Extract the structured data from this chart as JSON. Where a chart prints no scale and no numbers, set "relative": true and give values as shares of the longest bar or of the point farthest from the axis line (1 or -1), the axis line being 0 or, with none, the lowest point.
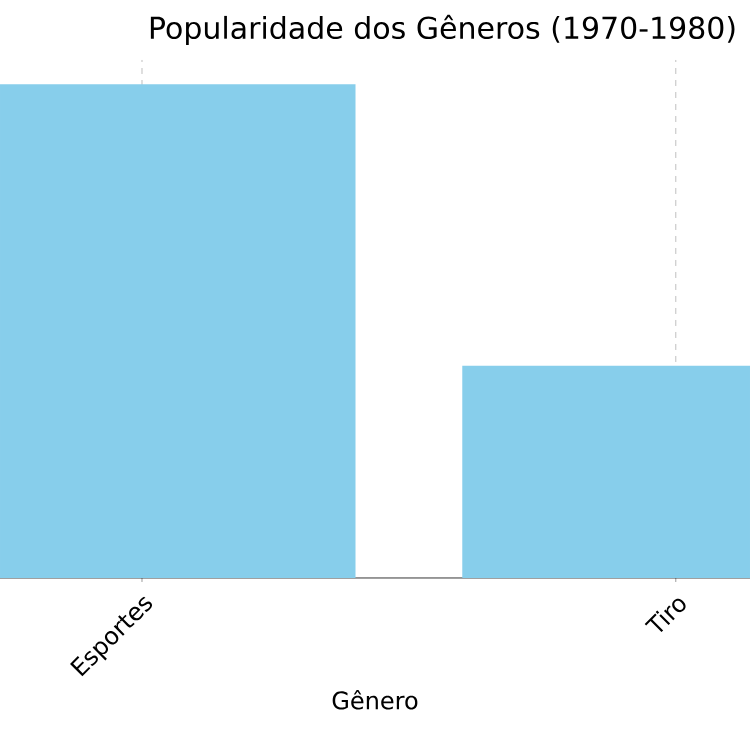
{
  "chart_data": {
    "type": "bar",
    "title": "Popularidade dos Gêneros (1970-1980)",
    "xlabel": "Gênero",
    "categories": [
      "Esportes",
      "Tiro"
    ],
    "values": [
      1,
      0.43
    ],
    "color": "#87ceeb",
    "relative": true,
    "grid": true
  }
}
